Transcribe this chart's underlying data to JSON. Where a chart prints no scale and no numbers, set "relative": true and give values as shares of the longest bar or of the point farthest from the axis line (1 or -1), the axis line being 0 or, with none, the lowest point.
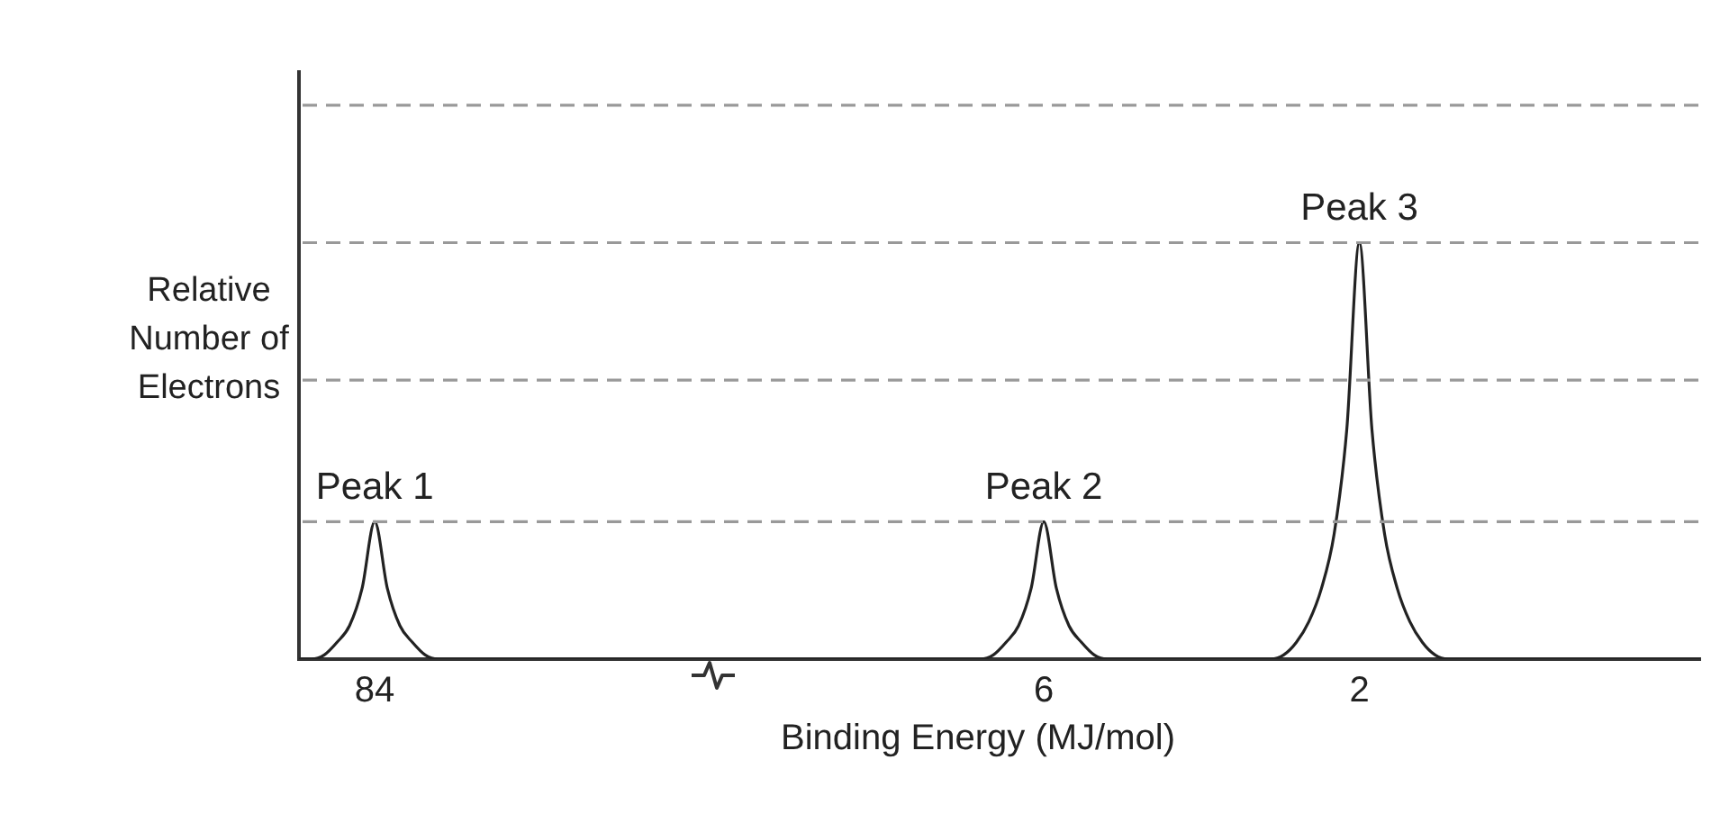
{
  "chart_data": {
    "type": "line",
    "relative": true,
    "legend": false,
    "ref_lines": [
      {
        "axis": "y",
        "value": 0.33,
        "line_style": "dashed",
        "color": "#999999"
      },
      {
        "axis": "y",
        "value": 0.67,
        "line_style": "dashed",
        "color": "#999999"
      },
      {
        "axis": "y",
        "value": 1,
        "line_style": "dashed",
        "color": "#999999"
      },
      {
        "axis": "y",
        "value": 1.33,
        "line_style": "dashed",
        "color": "#999999"
      }
    ],
    "marker": "none",
    "line_style": "solid",
    "xlabel": "Binding Energy (MJ/mol)",
    "ylabel": "Relative Number of Electrons",
    "categories": [
      null,
      null,
      null,
      null,
      null,
      null,
      "84",
      null,
      null,
      null,
      null,
      null,
      null,
      null,
      null,
      null,
      null,
      null,
      null,
      null,
      null,
      null,
      null,
      null,
      null,
      null,
      null,
      null,
      null,
      null,
      null,
      null,
      null,
      null,
      null,
      null,
      null,
      null,
      null,
      null,
      null,
      null,
      null,
      null,
      null,
      null,
      null,
      null,
      null,
      null,
      null,
      null,
      null,
      null,
      null,
      null,
      null,
      null,
      null,
      "6",
      null,
      null,
      null,
      null,
      null,
      null,
      null,
      null,
      null,
      null,
      null,
      null,
      null,
      null,
      null,
      null,
      null,
      null,
      null,
      null,
      null,
      null,
      null,
      null,
      "2",
      null,
      null,
      null,
      null,
      null,
      null,
      null,
      null,
      null,
      null,
      null,
      null,
      null,
      null,
      null,
      null,
      null,
      null,
      null,
      null,
      null,
      null,
      null,
      null,
      null,
      null,
      null
    ],
    "series": [
      {
        "color": "#222222",
        "values": [
          0,
          0,
          0.01,
          0.04,
          0.08,
          0.17,
          0.33,
          0.17,
          0.08,
          0.04,
          0.01,
          0,
          0,
          0,
          0,
          0,
          0,
          0,
          0,
          0,
          0,
          0,
          0,
          0,
          0,
          0,
          0,
          0,
          0,
          0,
          0,
          0,
          0,
          0,
          0,
          0,
          0,
          0,
          0,
          0,
          0,
          0,
          0,
          0,
          0,
          0,
          0,
          0,
          0,
          0,
          0,
          0,
          0,
          0,
          0,
          0.01,
          0.04,
          0.08,
          0.17,
          0.33,
          0.17,
          0.08,
          0.04,
          0.01,
          0,
          0,
          0,
          0,
          0,
          0,
          0,
          0,
          0,
          0,
          0,
          0,
          0,
          0,
          0.01,
          0.04,
          0.09,
          0.17,
          0.3,
          0.55,
          1,
          0.55,
          0.3,
          0.17,
          0.09,
          0.04,
          0.01,
          0,
          0,
          0,
          0,
          0,
          0,
          0,
          0,
          0,
          0,
          0,
          0,
          0,
          0,
          0,
          0,
          0,
          0,
          0,
          0,
          0
        ]
      }
    ],
    "annotations": [
      {
        "text": "Peak 1",
        "x": "84",
        "y": 0.33
      },
      {
        "text": "Peak 2",
        "x": "6",
        "y": 0.33
      },
      {
        "text": "Peak 3",
        "x": "2",
        "y": 1
      }
    ]
  }
}
